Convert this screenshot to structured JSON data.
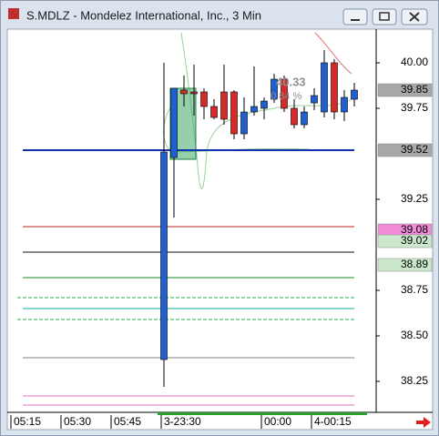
{
  "window": {
    "title": "S.MDLZ - Mondelez International, Inc., 3 Min"
  },
  "chart_data": {
    "type": "candlestick",
    "categories": [
      "05:15",
      null,
      null,
      null,
      null,
      "05:30",
      null,
      null,
      null,
      null,
      "05:45",
      null,
      null,
      null,
      null,
      "3-23:30",
      null,
      null,
      null,
      null,
      null,
      null,
      null,
      null,
      null,
      "00:00",
      null,
      null,
      null,
      null,
      "4-00:15",
      null,
      null,
      null,
      null
    ],
    "open": [
      null,
      null,
      null,
      null,
      null,
      null,
      null,
      null,
      null,
      null,
      null,
      null,
      null,
      null,
      null,
      38.37,
      39.48,
      39.85,
      39.84,
      39.84,
      39.76,
      39.84,
      39.84,
      39.61,
      39.73,
      39.75,
      39.8,
      39.91,
      39.75,
      39.66,
      39.78,
      39.73,
      40.0,
      39.73,
      39.8
    ],
    "high": [
      null,
      null,
      null,
      null,
      null,
      null,
      null,
      null,
      null,
      null,
      null,
      null,
      null,
      null,
      null,
      40.0,
      39.86,
      39.93,
      39.99,
      39.86,
      39.8,
      39.99,
      39.85,
      39.81,
      39.98,
      39.81,
      39.94,
      39.93,
      39.8,
      39.76,
      39.86,
      40.07,
      40.02,
      39.85,
      39.89
    ],
    "low": [
      null,
      null,
      null,
      null,
      null,
      null,
      null,
      null,
      null,
      null,
      null,
      null,
      null,
      null,
      null,
      38.22,
      39.15,
      39.76,
      39.71,
      39.69,
      39.69,
      39.66,
      39.58,
      39.58,
      39.71,
      39.69,
      39.78,
      39.73,
      39.64,
      39.64,
      39.74,
      39.7,
      39.69,
      39.68,
      39.76
    ],
    "close": [
      null,
      null,
      null,
      null,
      null,
      null,
      null,
      null,
      null,
      null,
      null,
      null,
      null,
      null,
      null,
      39.51,
      39.86,
      39.83,
      39.83,
      39.76,
      39.7,
      39.69,
      39.61,
      39.73,
      39.76,
      39.79,
      39.91,
      39.75,
      39.66,
      39.73,
      39.82,
      40.0,
      39.73,
      39.81,
      39.85
    ],
    "up_color": "#1f5fd0",
    "down_color": "#d42a2a",
    "ylim": [
      38.08,
      40.18
    ],
    "yticks": [
      {
        "value": 40,
        "label": "40.00"
      },
      39.75,
      39.25,
      38.75,
      {
        "value": 38.5,
        "label": "38.50"
      },
      38.25
    ],
    "levels": [
      {
        "value": 39.52,
        "color": "#1030b0"
      },
      {
        "value": 39.1,
        "color": "#c02020"
      },
      {
        "value": 38.96,
        "color": "#101010"
      },
      {
        "value": 38.82,
        "color": "#1a8a2a"
      },
      {
        "value": 38.71,
        "color": "#20b050",
        "dash": true
      },
      {
        "value": 38.65,
        "color": "#10a8a0"
      },
      {
        "value": 38.59,
        "color": "#20b050",
        "dash": true
      },
      {
        "value": 38.38,
        "color": "#808080"
      },
      {
        "value": 38.17,
        "color": "#e070c0"
      },
      {
        "value": 38.12,
        "color": "#e070c0"
      }
    ],
    "price_labels": [
      {
        "value": 39.85,
        "color": "#a8a8a8"
      },
      {
        "value": 39.52,
        "color": "#a8a8a8"
      },
      {
        "value": 39.08,
        "color": "#f08cd8"
      },
      {
        "value": 39.02,
        "color": "#cce8cc"
      },
      {
        "value": 38.89,
        "color": "#cce8cc"
      }
    ],
    "annotations": [
      "40.33",
      "0.84 %"
    ]
  }
}
